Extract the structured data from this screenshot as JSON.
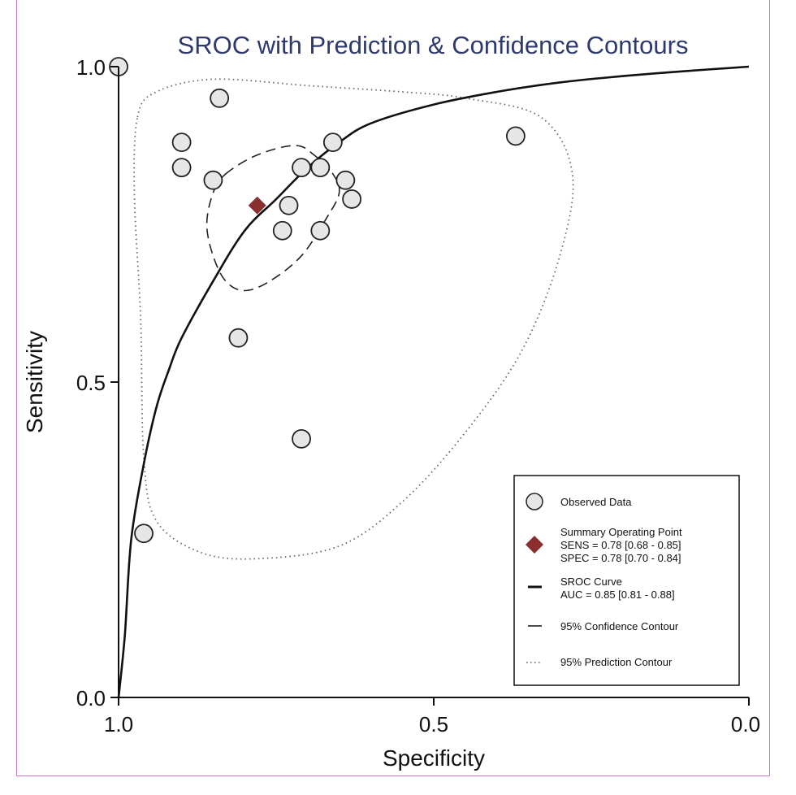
{
  "chart_data": {
    "type": "scatter",
    "title": "SROC with Prediction & Confidence Contours",
    "xlabel": "Specificity",
    "ylabel": "Sensitivity",
    "xlim": [
      1.0,
      0.0
    ],
    "ylim": [
      0.0,
      1.0
    ],
    "x_ticks": [
      "1.0",
      "0.5",
      "0.0"
    ],
    "y_ticks": [
      "0.0",
      "0.5",
      "1.0"
    ],
    "x_reversed": true,
    "grid": false,
    "legend_position": "bottom-right",
    "observed": [
      {
        "spec": 1.0,
        "sens": 1.0
      },
      {
        "spec": 0.84,
        "sens": 0.95
      },
      {
        "spec": 0.9,
        "sens": 0.88
      },
      {
        "spec": 0.9,
        "sens": 0.84
      },
      {
        "spec": 0.85,
        "sens": 0.82
      },
      {
        "spec": 0.66,
        "sens": 0.88
      },
      {
        "spec": 0.71,
        "sens": 0.84
      },
      {
        "spec": 0.68,
        "sens": 0.84
      },
      {
        "spec": 0.64,
        "sens": 0.82
      },
      {
        "spec": 0.63,
        "sens": 0.79
      },
      {
        "spec": 0.73,
        "sens": 0.78
      },
      {
        "spec": 0.74,
        "sens": 0.74
      },
      {
        "spec": 0.68,
        "sens": 0.74
      },
      {
        "spec": 0.37,
        "sens": 0.89
      },
      {
        "spec": 0.81,
        "sens": 0.57
      },
      {
        "spec": 0.71,
        "sens": 0.41
      },
      {
        "spec": 0.96,
        "sens": 0.26
      }
    ],
    "summary_point": {
      "spec": 0.78,
      "sens": 0.78
    },
    "sroc_curve": [
      {
        "spec": 1.0,
        "sens": 0.0
      },
      {
        "spec": 0.99,
        "sens": 0.1
      },
      {
        "spec": 0.98,
        "sens": 0.25
      },
      {
        "spec": 0.96,
        "sens": 0.37
      },
      {
        "spec": 0.94,
        "sens": 0.46
      },
      {
        "spec": 0.92,
        "sens": 0.52
      },
      {
        "spec": 0.9,
        "sens": 0.57
      },
      {
        "spec": 0.85,
        "sens": 0.66
      },
      {
        "spec": 0.8,
        "sens": 0.74
      },
      {
        "spec": 0.75,
        "sens": 0.79
      },
      {
        "spec": 0.7,
        "sens": 0.84
      },
      {
        "spec": 0.65,
        "sens": 0.88
      },
      {
        "spec": 0.6,
        "sens": 0.91
      },
      {
        "spec": 0.5,
        "sens": 0.94
      },
      {
        "spec": 0.4,
        "sens": 0.96
      },
      {
        "spec": 0.3,
        "sens": 0.975
      },
      {
        "spec": 0.2,
        "sens": 0.985
      },
      {
        "spec": 0.1,
        "sens": 0.993
      },
      {
        "spec": 0.0,
        "sens": 1.0
      }
    ],
    "confidence_contour": [
      {
        "spec": 0.83,
        "sens": 0.83
      },
      {
        "spec": 0.78,
        "sens": 0.86
      },
      {
        "spec": 0.72,
        "sens": 0.875
      },
      {
        "spec": 0.69,
        "sens": 0.86
      },
      {
        "spec": 0.66,
        "sens": 0.83
      },
      {
        "spec": 0.65,
        "sens": 0.8
      },
      {
        "spec": 0.67,
        "sens": 0.76
      },
      {
        "spec": 0.71,
        "sens": 0.7
      },
      {
        "spec": 0.76,
        "sens": 0.66
      },
      {
        "spec": 0.8,
        "sens": 0.645
      },
      {
        "spec": 0.83,
        "sens": 0.66
      },
      {
        "spec": 0.85,
        "sens": 0.7
      },
      {
        "spec": 0.86,
        "sens": 0.75
      },
      {
        "spec": 0.85,
        "sens": 0.8
      }
    ],
    "prediction_contour": [
      {
        "spec": 0.97,
        "sens": 0.92
      },
      {
        "spec": 0.94,
        "sens": 0.96
      },
      {
        "spec": 0.85,
        "sens": 0.98
      },
      {
        "spec": 0.7,
        "sens": 0.97
      },
      {
        "spec": 0.55,
        "sens": 0.96
      },
      {
        "spec": 0.45,
        "sens": 0.95
      },
      {
        "spec": 0.33,
        "sens": 0.92
      },
      {
        "spec": 0.28,
        "sens": 0.83
      },
      {
        "spec": 0.3,
        "sens": 0.7
      },
      {
        "spec": 0.36,
        "sens": 0.55
      },
      {
        "spec": 0.45,
        "sens": 0.42
      },
      {
        "spec": 0.55,
        "sens": 0.31
      },
      {
        "spec": 0.65,
        "sens": 0.24
      },
      {
        "spec": 0.78,
        "sens": 0.22
      },
      {
        "spec": 0.87,
        "sens": 0.23
      },
      {
        "spec": 0.94,
        "sens": 0.28
      },
      {
        "spec": 0.96,
        "sens": 0.38
      },
      {
        "spec": 0.965,
        "sens": 0.6
      },
      {
        "spec": 0.975,
        "sens": 0.8
      }
    ],
    "legend": {
      "observed": "Observed Data",
      "summary_line1": "Summary Operating Point",
      "summary_line2": "SENS = 0.78 [0.68 - 0.85]",
      "summary_line3": "SPEC = 0.78 [0.70 - 0.84]",
      "sroc_line1": "SROC Curve",
      "sroc_line2": "AUC = 0.85 [0.81 - 0.88]",
      "confidence": "95% Confidence Contour",
      "prediction": "95% Prediction Contour"
    },
    "colors": {
      "point_fill": "#e6e6e6",
      "point_stroke": "#222222",
      "summary": "#8b2e2e",
      "curve": "#111111",
      "title": "#2e3a6e"
    }
  }
}
